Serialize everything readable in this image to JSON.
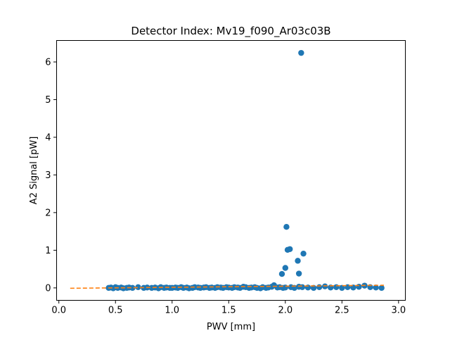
{
  "chart_data": {
    "type": "scatter",
    "title": "Detector Index: Mv19_f090_Ar03c03B",
    "xlabel": "PWV [mm]",
    "ylabel": "A2 Signal [pW]",
    "xlim": [
      -0.02,
      3.06
    ],
    "ylim": [
      -0.33,
      6.57
    ],
    "xticks": [
      0.0,
      0.5,
      1.0,
      1.5,
      2.0,
      2.5,
      3.0
    ],
    "xtick_labels": [
      "0.0",
      "0.5",
      "1.0",
      "1.5",
      "2.0",
      "2.5",
      "3.0"
    ],
    "yticks": [
      0,
      1,
      2,
      3,
      4,
      5,
      6
    ],
    "ytick_labels": [
      "0",
      "1",
      "2",
      "3",
      "4",
      "5",
      "6"
    ],
    "grid": false,
    "colors": {
      "points": "#1f77b4",
      "fit": "#ff7f0e"
    },
    "series": [
      {
        "style": "markers",
        "x": [
          0.44,
          0.46,
          0.48,
          0.5,
          0.52,
          0.55,
          0.57,
          0.6,
          0.62,
          0.65,
          0.7,
          0.75,
          0.78,
          0.82,
          0.85,
          0.88,
          0.9,
          0.93,
          0.95,
          0.98,
          1.0,
          1.03,
          1.05,
          1.08,
          1.1,
          1.13,
          1.15,
          1.18,
          1.2,
          1.23,
          1.25,
          1.28,
          1.3,
          1.33,
          1.35,
          1.38,
          1.4,
          1.43,
          1.45,
          1.48,
          1.5,
          1.53,
          1.55,
          1.58,
          1.6,
          1.63,
          1.65,
          1.68,
          1.7,
          1.73,
          1.75,
          1.78,
          1.8,
          1.83,
          1.85,
          1.88,
          1.9,
          1.93,
          1.95,
          1.98,
          2.0,
          2.05,
          2.08,
          2.12,
          2.15,
          2.2,
          2.25,
          2.3,
          2.35,
          2.4,
          2.45,
          2.5,
          2.55,
          2.6,
          2.65,
          2.7,
          2.75,
          2.8,
          2.85,
          1.97,
          2.0,
          2.01,
          2.04,
          2.02,
          2.11,
          2.16,
          2.12,
          2.14
        ],
        "y": [
          0.0,
          0.01,
          -0.01,
          0.02,
          0.0,
          0.01,
          -0.01,
          0.0,
          0.01,
          0.0,
          0.02,
          0.0,
          0.01,
          0.0,
          0.01,
          -0.01,
          0.02,
          0.0,
          0.01,
          0.0,
          0.0,
          0.01,
          0.0,
          0.02,
          0.0,
          0.01,
          -0.01,
          0.0,
          0.02,
          0.01,
          0.0,
          0.01,
          0.02,
          0.0,
          0.01,
          0.0,
          0.02,
          0.01,
          0.0,
          0.02,
          0.01,
          0.0,
          0.02,
          0.01,
          0.0,
          0.03,
          0.02,
          0.0,
          0.01,
          0.02,
          0.0,
          -0.01,
          0.02,
          0.0,
          0.01,
          0.03,
          0.07,
          0.01,
          0.02,
          0.0,
          0.01,
          0.02,
          0.0,
          0.03,
          0.02,
          0.01,
          0.0,
          0.02,
          0.04,
          0.01,
          0.02,
          0.0,
          0.02,
          0.01,
          0.03,
          0.06,
          0.02,
          0.01,
          0.0,
          0.37,
          0.53,
          1.62,
          1.03,
          1.01,
          0.72,
          0.91,
          0.38,
          6.24
        ]
      },
      {
        "style": "dashed-line",
        "x": [
          0.1,
          2.87
        ],
        "y": [
          -0.01,
          0.07
        ]
      }
    ]
  }
}
